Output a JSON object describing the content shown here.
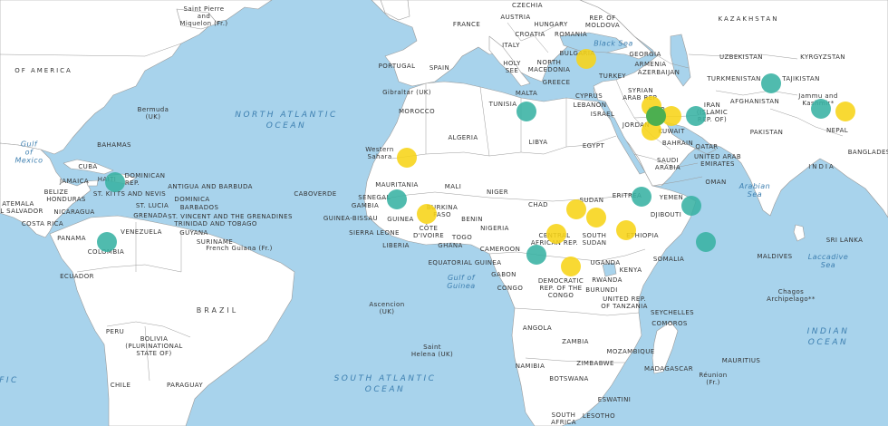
{
  "map": {
    "colors": {
      "water": "#a8d3ec",
      "land": "#ffffff",
      "border": "#9a9a9a",
      "marker_yellow": "#f7d417",
      "marker_teal": "#38b2a3",
      "marker_green": "#4caf50"
    },
    "labels": {
      "saint_pierre": "Saint Pierre\nand\nMiquelon (Fr.)",
      "of_america": "OF AMERICA",
      "bermuda": "Bermuda\n(UK)",
      "gulf_mexico": "Gulf\nof\nMexico",
      "bahamas": "BAHAMAS",
      "cuba": "CUBA",
      "dominican": "DOMINICAN",
      "rep": "REP.",
      "haiti": "HAITI",
      "jamaica": "JAMAICA",
      "belize": "BELIZE",
      "guatemala": "ATEMALA",
      "honduras": "HONDURAS",
      "el_salvador": "L SALVADOR",
      "nicaragua": "NICARAGUA",
      "costa_rica": "COSTA RICA",
      "panama": "PANAMA",
      "antigua": "ANTIGUA AND BARBUDA",
      "st_kitts": "ST. KITTS AND NEVIS",
      "dominica": "DOMINICA",
      "st_lucia": "ST. LUCIA",
      "barbados": "BARBADOS",
      "grenada": "GRENADA",
      "st_vincent": "ST. VINCENT AND THE GRENADINES",
      "trinidad": "TRINIDAD AND TOBAGO",
      "venezuela": "VENEZUELA",
      "guyana": "GUYANA",
      "suriname": "SURINAME",
      "french_guiana": "French Guiana (Fr.)",
      "colombia": "COLOMBIA",
      "ecuador": "ECUADOR",
      "peru": "PERU",
      "brazil": "BRAZIL",
      "bolivia": "BOLIVIA\n(PLURINATIONAL\nSTATE OF)",
      "chile": "CHILE",
      "paraguay": "PARAGUAY",
      "north_atlantic": "NORTH ATLANTIC\nOCEAN",
      "south_atlantic": "SOUTH ATLANTIC\nOCEAN",
      "fic": "FIC",
      "caboverde": "CABOVERDE",
      "senegal": "SENEGAL",
      "gambia": "GAMBIA",
      "guinea_bissau": "GUINEA-BISSAU",
      "guinea": "GUINEA",
      "sierra_leone": "SIERRA LEONE",
      "liberia": "LIBERIA",
      "cote_divoire": "CÔTE\nD'IVOIRE",
      "ghana": "GHANA",
      "togo": "TOGO",
      "benin": "BENIN",
      "burkina": "BURKINA\nFASO",
      "mali": "MALI",
      "mauritania": "MAURITANIA",
      "western_sahara": "Western\nSahara",
      "morocco": "MOROCCO",
      "algeria": "ALGERIA",
      "tunisia": "TUNISIA",
      "libya": "LIBYA",
      "egypt": "EGYPT",
      "niger": "NIGER",
      "nigeria": "NIGERIA",
      "chad": "CHAD",
      "sudan": "SUDAN",
      "south_sudan": "SOUTH\nSUDAN",
      "eritrea": "ERITREA",
      "djibouti": "DJIBOUTI",
      "ethiopia": "ETHIOPIA",
      "somalia": "SOMALIA",
      "cameroon": "CAMEROON",
      "central_african": "CENTRAL\nAFRICAN REP.",
      "equatorial_guinea": "EQUATORIAL GUINEA",
      "gabon": "GABON",
      "congo": "CONGO",
      "drc": "DEMOCRATIC\nREP. OF THE\nCONGO",
      "uganda": "UGANDA",
      "kenya": "KENYA",
      "rwanda": "RWANDA",
      "burundi": "BURUNDI",
      "tanzania": "UNITED REP.\nOF TANZANIA",
      "angola": "ANGOLA",
      "zambia": "ZAMBIA",
      "mozambique": "MOZAMBIQUE",
      "zimbabwe": "ZIMBABWE",
      "namibia": "NAMIBIA",
      "botswana": "BOTSWANA",
      "eswatini": "ESWATINI",
      "lesotho": "LESOTHO",
      "south_africa": "SOUTH\nAFRICA",
      "madagascar": "MADAGASCAR",
      "comoros": "COMOROS",
      "seychelles": "SEYCHELLES",
      "mauritius": "MAURITIUS",
      "reunion": "Réunion\n(Fr.)",
      "maldives": "MALDIVES",
      "sri_lanka": "SRI LANKA",
      "chagos": "Chagos\nArchipelago**",
      "gulf_guinea": "Gulf of\nGuinea",
      "ascension": "Ascencion\n(UK)",
      "saint_helena": "Saint\nHelena (UK)",
      "gibraltar": "Gibraltar (UK)",
      "portugal": "PORTUGAL",
      "spain": "SPAIN",
      "france": "FRANCE",
      "italy": "ITALY",
      "malta": "MALTA",
      "czechia": "CZECHIA",
      "austria": "AUSTRIA",
      "hungary": "HUNGARY",
      "croatia": "CROATIA",
      "holy_see": "HOLY\nSEE",
      "romania": "ROMANIA",
      "moldova": "REP. OF\nMOLDOVA",
      "bulgaria": "BULGARIA",
      "north_macedonia": "NORTH\nMACEDONIA",
      "greece": "GREECE",
      "turkey": "TURKEY",
      "cyprus": "CYPRUS",
      "lebanon": "LEBANON",
      "israel": "ISRAEL",
      "syrian": "SYRIAN\nARAB REP.",
      "jordan": "JORDAN",
      "iraq": "IRAQ",
      "iran": "IRAN\n(ISLAMIC\nREP. OF)",
      "kuwait": "KUWAIT",
      "bahrain": "BAHRAIN",
      "qatar": "QATAR",
      "uae": "UNITED ARAB\nEMIRATES",
      "saudi_arabia": "SAUDI\nARABIA",
      "yemen": "YEMEN",
      "oman": "OMAN",
      "georgia": "GEORGIA",
      "armenia": "ARMENIA",
      "azerbaijan": "AZERBAIJAN",
      "black_sea": "Black Sea",
      "kazakhstan": "KAZAKHSTAN",
      "uzbekistan": "UZBEKISTAN",
      "kyrgyzstan": "KYRGYZSTAN",
      "turkmenistan": "TURKMENISTAN",
      "tajikistan": "TAJIKISTAN",
      "afghanistan": "AFGHANISTAN",
      "pakistan": "PAKISTAN",
      "jammu_kashmir": "Jammu and\nKashmir*",
      "nepal": "NEPAL",
      "india": "INDIA",
      "bangladesh": "BANGLADESH",
      "arabian_sea": "Arabian\nSea",
      "laccadive_sea": "Laccadive\nSea",
      "indian_ocean": "INDIAN\nOCEAN"
    },
    "markers": [
      {
        "category": "yellow",
        "lat": 44,
        "lon": 22
      },
      {
        "category": "yellow",
        "lat": 24,
        "lon": -14
      },
      {
        "category": "yellow",
        "lat": 11,
        "lon": -10
      },
      {
        "category": "yellow",
        "lat": 12,
        "lon": 20
      },
      {
        "category": "yellow",
        "lat": 10,
        "lon": 24
      },
      {
        "category": "yellow",
        "lat": 6,
        "lon": 16
      },
      {
        "category": "yellow",
        "lat": 7,
        "lon": 30
      },
      {
        "category": "yellow",
        "lat": -2,
        "lon": 19
      },
      {
        "category": "yellow",
        "lat": 35,
        "lon": 35
      },
      {
        "category": "yellow",
        "lat": 30,
        "lon": 35
      },
      {
        "category": "yellow",
        "lat": 33,
        "lon": 39
      },
      {
        "category": "yellow",
        "lat": 34,
        "lon": 74
      },
      {
        "category": "teal",
        "lat": 18.5,
        "lon": -72.5
      },
      {
        "category": "teal",
        "lat": 4,
        "lon": -74
      },
      {
        "category": "teal",
        "lat": 14.5,
        "lon": -16
      },
      {
        "category": "teal",
        "lat": 34,
        "lon": 10
      },
      {
        "category": "teal",
        "lat": 15,
        "lon": 33
      },
      {
        "category": "teal",
        "lat": 13,
        "lon": 43
      },
      {
        "category": "teal",
        "lat": 4,
        "lon": 46
      },
      {
        "category": "teal",
        "lat": 1,
        "lon": 12
      },
      {
        "category": "teal",
        "lat": 33,
        "lon": 44
      },
      {
        "category": "teal",
        "lat": 39.5,
        "lon": 59
      },
      {
        "category": "teal",
        "lat": 34.5,
        "lon": 69
      },
      {
        "category": "green",
        "lat": 33,
        "lon": 36
      }
    ]
  }
}
